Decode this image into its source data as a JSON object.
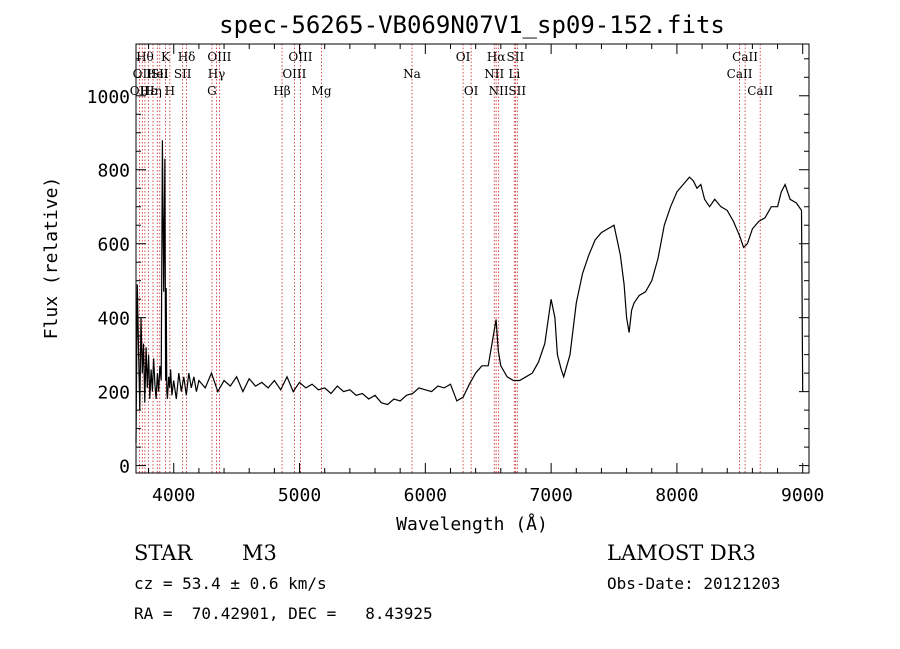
{
  "chart_data": {
    "type": "line",
    "title": "spec-56265-VB069N07V1_sp09-152.fits",
    "xlabel": "Wavelength (Å)",
    "ylabel": "Flux (relative)",
    "xlim": [
      3700,
      9050
    ],
    "ylim": [
      -20,
      1140
    ],
    "xticks": [
      4000,
      5000,
      6000,
      7000,
      8000,
      9000
    ],
    "yticks": [
      0,
      200,
      400,
      600,
      800,
      1000
    ],
    "series": [
      {
        "name": "spectrum",
        "x": [
          3700,
          3710,
          3720,
          3730,
          3740,
          3750,
          3760,
          3770,
          3780,
          3790,
          3800,
          3810,
          3820,
          3830,
          3840,
          3850,
          3860,
          3870,
          3880,
          3890,
          3900,
          3910,
          3920,
          3930,
          3935,
          3940,
          3945,
          3950,
          3960,
          3968,
          3975,
          3985,
          4000,
          4020,
          4040,
          4060,
          4080,
          4100,
          4120,
          4140,
          4160,
          4180,
          4200,
          4250,
          4300,
          4350,
          4400,
          4450,
          4500,
          4550,
          4600,
          4650,
          4700,
          4750,
          4800,
          4850,
          4900,
          4950,
          5000,
          5050,
          5100,
          5150,
          5200,
          5250,
          5300,
          5350,
          5400,
          5450,
          5500,
          5550,
          5600,
          5650,
          5700,
          5750,
          5800,
          5850,
          5900,
          5950,
          6000,
          6050,
          6100,
          6150,
          6200,
          6250,
          6300,
          6350,
          6400,
          6450,
          6500,
          6530,
          6563,
          6580,
          6600,
          6650,
          6700,
          6750,
          6800,
          6850,
          6900,
          6950,
          7000,
          7030,
          7050,
          7080,
          7100,
          7150,
          7200,
          7250,
          7300,
          7350,
          7400,
          7450,
          7500,
          7550,
          7580,
          7600,
          7620,
          7640,
          7660,
          7700,
          7750,
          7800,
          7850,
          7900,
          7950,
          8000,
          8050,
          8100,
          8130,
          8160,
          8190,
          8220,
          8260,
          8300,
          8350,
          8400,
          8450,
          8500,
          8530,
          8560,
          8600,
          8650,
          8700,
          8750,
          8800,
          8830,
          8860,
          8900,
          8950,
          8990,
          9000
        ],
        "values": [
          60,
          490,
          320,
          150,
          400,
          250,
          330,
          170,
          320,
          210,
          300,
          180,
          260,
          200,
          290,
          220,
          180,
          250,
          200,
          270,
          230,
          880,
          470,
          830,
          230,
          480,
          200,
          180,
          240,
          210,
          260,
          190,
          230,
          180,
          250,
          200,
          240,
          190,
          250,
          210,
          240,
          200,
          230,
          210,
          250,
          200,
          230,
          215,
          240,
          200,
          235,
          215,
          225,
          210,
          230,
          205,
          240,
          200,
          225,
          210,
          220,
          205,
          210,
          195,
          215,
          200,
          205,
          190,
          195,
          180,
          190,
          170,
          165,
          180,
          175,
          190,
          195,
          210,
          205,
          200,
          215,
          210,
          220,
          175,
          185,
          220,
          250,
          270,
          270,
          330,
          395,
          310,
          270,
          240,
          230,
          230,
          240,
          250,
          280,
          330,
          450,
          400,
          300,
          260,
          240,
          300,
          440,
          520,
          570,
          610,
          630,
          640,
          650,
          570,
          490,
          400,
          360,
          420,
          440,
          460,
          470,
          500,
          560,
          650,
          700,
          740,
          760,
          780,
          770,
          750,
          760,
          720,
          700,
          720,
          700,
          690,
          660,
          620,
          590,
          600,
          640,
          660,
          670,
          700,
          700,
          740,
          760,
          720,
          710,
          690,
          200
        ]
      }
    ],
    "lines": [
      {
        "x": 3727,
        "label": "OII",
        "row": 2
      },
      {
        "x": 3750,
        "label": "OII",
        "row": 1
      },
      {
        "x": 3771,
        "label": "Hθ",
        "row": 0
      },
      {
        "x": 3798,
        "label": "Hε",
        "row": 2
      },
      {
        "x": 3835,
        "label": "Hη",
        "row": 2
      },
      {
        "x": 3869,
        "label": "HeI",
        "row": 1
      },
      {
        "x": 3889,
        "label": "SII",
        "row": 1
      },
      {
        "x": 3934,
        "label": "K",
        "row": 0
      },
      {
        "x": 3969,
        "label": "H",
        "row": 2
      },
      {
        "x": 4102,
        "label": "Hδ",
        "row": 0
      },
      {
        "x": 4071,
        "label": "SII",
        "row": 1
      },
      {
        "x": 4304,
        "label": "G",
        "row": 2
      },
      {
        "x": 4340,
        "label": "Hγ",
        "row": 1
      },
      {
        "x": 4363,
        "label": "OIII",
        "row": 0
      },
      {
        "x": 4861,
        "label": "Hβ",
        "row": 2
      },
      {
        "x": 4959,
        "label": "OIII",
        "row": 1
      },
      {
        "x": 5007,
        "label": "OIII",
        "row": 0
      },
      {
        "x": 5175,
        "label": "Mg",
        "row": 2
      },
      {
        "x": 5894,
        "label": "Na",
        "row": 1
      },
      {
        "x": 6300,
        "label": "OI",
        "row": 0
      },
      {
        "x": 6364,
        "label": "OI",
        "row": 2
      },
      {
        "x": 6548,
        "label": "NII",
        "row": 1
      },
      {
        "x": 6563,
        "label": "Hα",
        "row": 0
      },
      {
        "x": 6583,
        "label": "NII",
        "row": 2
      },
      {
        "x": 6707,
        "label": "Li",
        "row": 1
      },
      {
        "x": 6716,
        "label": "SII",
        "row": 0
      },
      {
        "x": 6731,
        "label": "SII",
        "row": 2
      },
      {
        "x": 8498,
        "label": "CaII",
        "row": 1
      },
      {
        "x": 8542,
        "label": "CaII",
        "row": 0
      },
      {
        "x": 8662,
        "label": "CaII",
        "row": 2
      }
    ]
  },
  "info": {
    "object_class": "STAR",
    "subclass": "M3",
    "survey": "LAMOST DR3",
    "redshift": "cz = 53.4 ± 0.6 km/s",
    "obs_date": "Obs-Date: 20121203",
    "coords": "RA =  70.42901, DEC =   8.43925"
  },
  "colors": {
    "line_marker": "#cc2222",
    "spectrum": "#000000"
  }
}
